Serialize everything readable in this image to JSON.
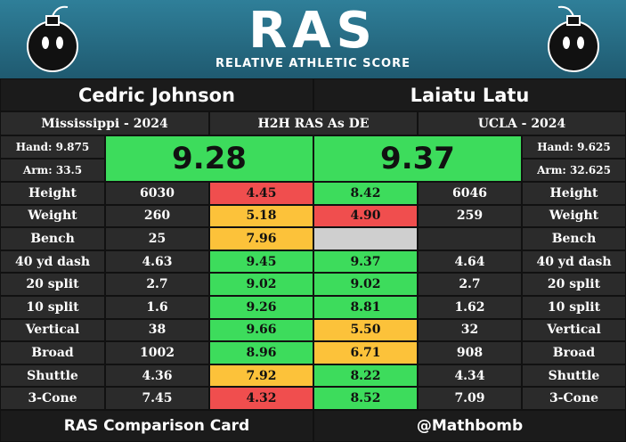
{
  "header": {
    "logo": "RAS",
    "subtitle": "RELATIVE ATHLETIC SCORE"
  },
  "matchup": "H2H RAS As DE",
  "players": [
    {
      "name": "Cedric Johnson",
      "school": "Mississippi - 2024",
      "hand": "Hand: 9.875",
      "arm": "Arm: 33.5",
      "ras": "9.28",
      "color": "#3ddc5c"
    },
    {
      "name": "Laiatu Latu",
      "school": "UCLA - 2024",
      "hand": "Hand: 9.625",
      "arm": "Arm: 32.625",
      "ras": "9.37",
      "color": "#3ddc5c"
    }
  ],
  "table": {
    "rows": [
      {
        "metric": "Height",
        "left": {
          "value": "6030",
          "score": "4.45",
          "color": "#f04e4e"
        },
        "right": {
          "value": "6046",
          "score": "8.42",
          "color": "#3ddc5c"
        }
      },
      {
        "metric": "Weight",
        "left": {
          "value": "260",
          "score": "5.18",
          "color": "#fcc23a"
        },
        "right": {
          "value": "259",
          "score": "4.90",
          "color": "#f04e4e"
        }
      },
      {
        "metric": "Bench",
        "left": {
          "value": "25",
          "score": "7.96",
          "color": "#fcc23a"
        },
        "right": {
          "value": null,
          "score": null,
          "color": "#cfcfcf"
        }
      },
      {
        "metric": "40 yd dash",
        "left": {
          "value": "4.63",
          "score": "9.45",
          "color": "#3ddc5c"
        },
        "right": {
          "value": "4.64",
          "score": "9.37",
          "color": "#3ddc5c"
        }
      },
      {
        "metric": "20 split",
        "left": {
          "value": "2.7",
          "score": "9.02",
          "color": "#3ddc5c"
        },
        "right": {
          "value": "2.7",
          "score": "9.02",
          "color": "#3ddc5c"
        }
      },
      {
        "metric": "10 split",
        "left": {
          "value": "1.6",
          "score": "9.26",
          "color": "#3ddc5c"
        },
        "right": {
          "value": "1.62",
          "score": "8.81",
          "color": "#3ddc5c"
        }
      },
      {
        "metric": "Vertical",
        "left": {
          "value": "38",
          "score": "9.66",
          "color": "#3ddc5c"
        },
        "right": {
          "value": "32",
          "score": "5.50",
          "color": "#fcc23a"
        }
      },
      {
        "metric": "Broad",
        "left": {
          "value": "1002",
          "score": "8.96",
          "color": "#3ddc5c"
        },
        "right": {
          "value": "908",
          "score": "6.71",
          "color": "#fcc23a"
        }
      },
      {
        "metric": "Shuttle",
        "left": {
          "value": "4.36",
          "score": "7.92",
          "color": "#fcc23a"
        },
        "right": {
          "value": "4.34",
          "score": "8.22",
          "color": "#3ddc5c"
        }
      },
      {
        "metric": "3-Cone",
        "left": {
          "value": "7.45",
          "score": "4.32",
          "color": "#f04e4e"
        },
        "right": {
          "value": "7.09",
          "score": "8.52",
          "color": "#3ddc5c"
        }
      }
    ]
  },
  "footer": {
    "left": "RAS Comparison Card",
    "right": "@Mathbomb"
  }
}
